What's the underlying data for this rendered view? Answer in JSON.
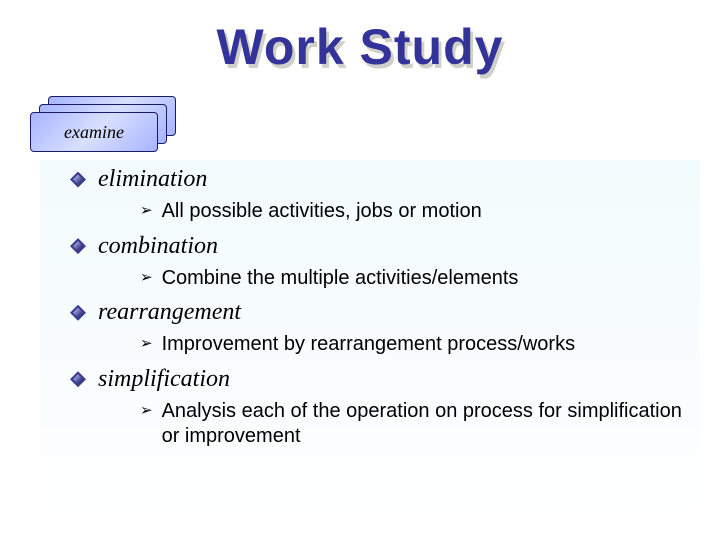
{
  "title": "Work Study",
  "card_label": "examine",
  "colors": {
    "title_color": "#333399",
    "title_shadow": "#d0cfc8",
    "card_border": "#1a1a6a",
    "card_grad_a": "#a8b4ff",
    "card_grad_b": "#d8e0ff",
    "content_bg_top": "#f2fbfd",
    "content_bg_bottom": "#fefeff",
    "bullet_dark": "#3b3b8f",
    "text_color": "#000000"
  },
  "typography": {
    "title_fontsize": 50,
    "section_title_fontsize": 24,
    "section_text_fontsize": 20,
    "card_label_fontsize": 18,
    "serif_font": "Georgia, Times New Roman, serif",
    "sans_font": "Arial, sans-serif"
  },
  "sections": [
    {
      "title": "elimination",
      "text": "All possible activities, jobs or motion"
    },
    {
      "title": "combination",
      "text": "Combine the multiple activities/elements"
    },
    {
      "title": "rearrangement",
      "text": "Improvement by rearrangement process/works"
    },
    {
      "title": "simplification",
      "text": "Analysis  each of the operation on process for simplification or improvement"
    }
  ]
}
